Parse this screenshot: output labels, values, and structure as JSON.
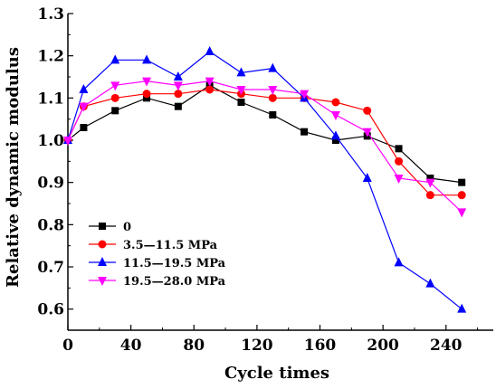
{
  "chart_data": {
    "type": "line",
    "title": "",
    "xlabel": "Cycle times",
    "ylabel": "Relative dynamic modulus",
    "xlim": [
      0,
      270
    ],
    "ylim": [
      0.55,
      1.3
    ],
    "x_ticks": [
      0,
      40,
      80,
      120,
      160,
      200,
      240
    ],
    "y_ticks": [
      0.6,
      0.7,
      0.8,
      0.9,
      1.0,
      1.1,
      1.2,
      1.3
    ],
    "x_tick_labels": [
      "0",
      "40",
      "80",
      "120",
      "160",
      "200",
      "240"
    ],
    "y_tick_labels": [
      "0.6",
      "0.7",
      "0.8",
      "0.9",
      "1.0",
      "1.1",
      "1.2",
      "1.3"
    ],
    "grid": false,
    "legend_position": "lower-left",
    "x": [
      0,
      10,
      30,
      50,
      70,
      90,
      110,
      130,
      150,
      170,
      190,
      210,
      230,
      250
    ],
    "series": [
      {
        "name": "0",
        "color": "#000000",
        "marker": "square",
        "values": [
          1.0,
          1.03,
          1.07,
          1.1,
          1.08,
          1.13,
          1.09,
          1.06,
          1.02,
          1.0,
          1.01,
          0.98,
          0.91,
          0.9
        ]
      },
      {
        "name": "3.5—11.5 MPa",
        "color": "#ff0000",
        "marker": "circle",
        "values": [
          1.0,
          1.08,
          1.1,
          1.11,
          1.11,
          1.12,
          1.11,
          1.1,
          1.1,
          1.09,
          1.07,
          0.95,
          0.87,
          0.87
        ]
      },
      {
        "name": "11.5—19.5 MPa",
        "color": "#0000ff",
        "marker": "triangle-up",
        "values": [
          1.0,
          1.12,
          1.19,
          1.19,
          1.15,
          1.21,
          1.16,
          1.17,
          1.1,
          1.01,
          0.91,
          0.71,
          0.66,
          0.6
        ]
      },
      {
        "name": "19.5—28.0 MPa",
        "color": "#ff00ff",
        "marker": "triangle-down",
        "values": [
          1.0,
          1.08,
          1.13,
          1.14,
          1.13,
          1.14,
          1.12,
          1.12,
          1.11,
          1.06,
          1.02,
          0.91,
          0.9,
          0.83
        ]
      }
    ]
  }
}
